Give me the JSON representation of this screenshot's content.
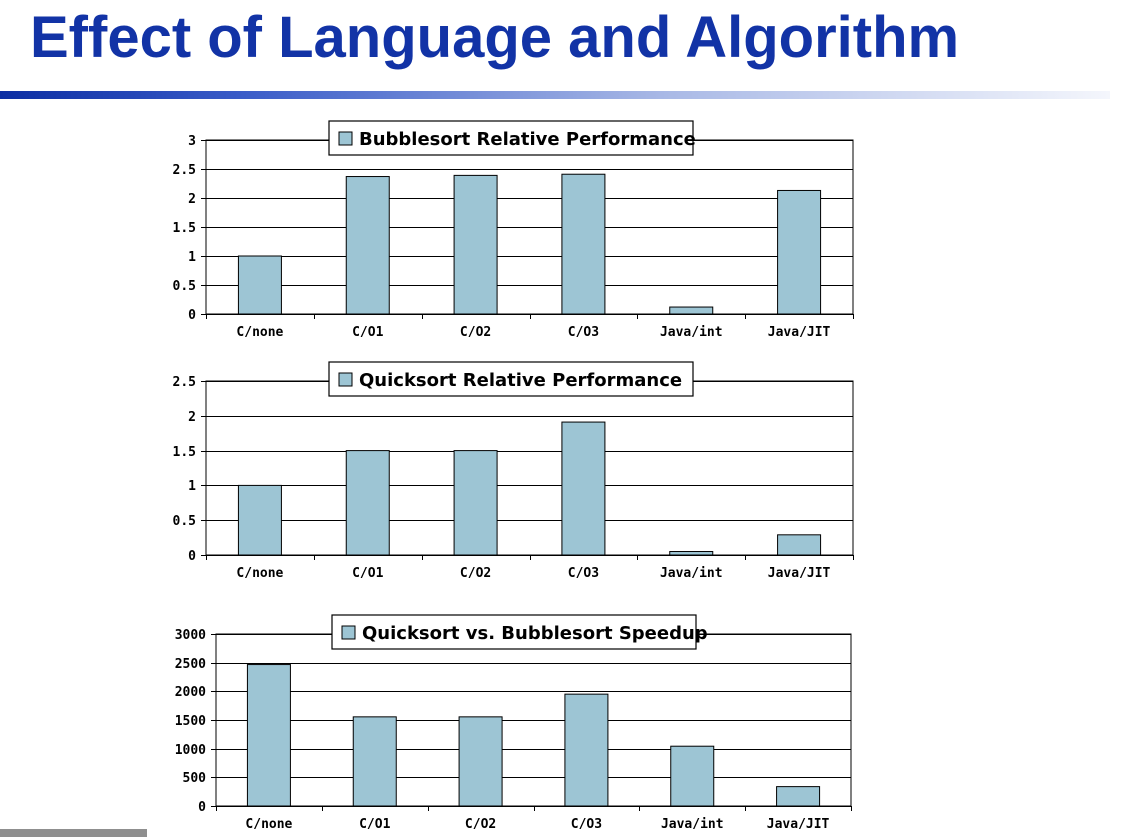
{
  "slide": {
    "title": "Effect of Language and Algorithm"
  },
  "colors": {
    "title": "#1233a6",
    "bar_fill": "#9dc5d4",
    "bar_stroke": "#000000",
    "gridline": "#000000"
  },
  "chart_data": [
    {
      "type": "bar",
      "legend_label": "Bubblesort Relative Performance",
      "legend_position": "top-center",
      "categories": [
        "C/none",
        "C/O1",
        "C/O2",
        "C/O3",
        "Java/int",
        "Java/JIT"
      ],
      "values": [
        1,
        2.37,
        2.39,
        2.41,
        0.12,
        2.13
      ],
      "yticks": [
        "0",
        "0.5",
        "1",
        "1.5",
        "2",
        "2.5",
        "3"
      ],
      "ylim": [
        0,
        3
      ],
      "grid": true
    },
    {
      "type": "bar",
      "legend_label": "Quicksort Relative Performance",
      "legend_position": "top-center",
      "categories": [
        "C/none",
        "C/O1",
        "C/O2",
        "C/O3",
        "Java/int",
        "Java/JIT"
      ],
      "values": [
        1,
        1.5,
        1.5,
        1.91,
        0.05,
        0.29
      ],
      "yticks": [
        "0",
        "0.5",
        "1",
        "1.5",
        "2",
        "2.5"
      ],
      "ylim": [
        0,
        2.5
      ],
      "grid": true
    },
    {
      "type": "bar",
      "legend_label": "Quicksort vs. Bubblesort Speedup",
      "legend_position": "top-center",
      "categories": [
        "C/none",
        "C/O1",
        "C/O2",
        "C/O3",
        "Java/int",
        "Java/JIT"
      ],
      "values": [
        2467,
        1555,
        1555,
        1951,
        1043,
        338
      ],
      "yticks": [
        "0",
        "500",
        "1000",
        "1500",
        "2000",
        "2500",
        "3000"
      ],
      "ylim": [
        0,
        3000
      ],
      "grid": true
    }
  ]
}
